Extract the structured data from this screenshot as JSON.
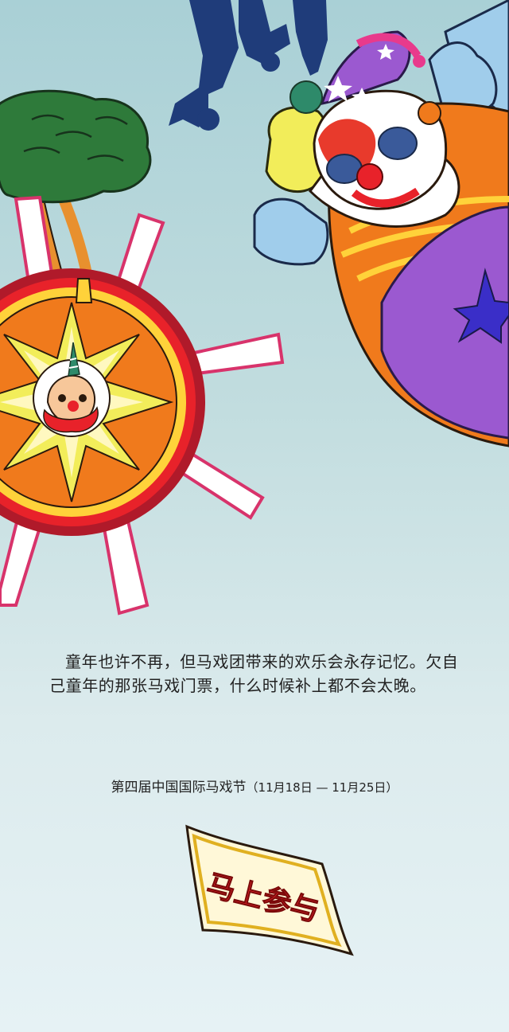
{
  "article": {
    "paragraph": "童年也许不再，但马戏团带来的欢乐会永存记忆。欠自己童年的那张马戏门票，什么时候补上都不会太晚。",
    "event_name": "第四届中国国际马戏节",
    "event_dates": "（11月18日 — 11月25日）"
  },
  "cta": {
    "label": "马上参与"
  },
  "illustration": {
    "scene": "circus-clown-and-lantern",
    "icons": [
      "acrobats-silhouette-icon",
      "tree-icon",
      "clown-icon",
      "star-lantern-icon",
      "flag-banner-icon"
    ]
  },
  "colors": {
    "background_top": "#a9d0d6",
    "background_bottom": "#e6f2f5",
    "text": "#222222",
    "cta_text": "#e8222a",
    "clown_purple": "#9b59d0",
    "lantern_orange": "#f07a1c",
    "tree_green": "#2e7a3a"
  }
}
